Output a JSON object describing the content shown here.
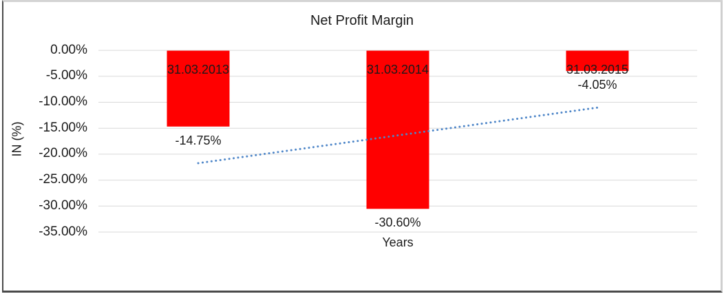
{
  "chart_data": {
    "type": "bar",
    "title": "Net Profit Margin",
    "xlabel": "Years",
    "ylabel": "IN (%)",
    "categories": [
      "31.03.2013",
      "31.03.2014",
      "31.03.2015"
    ],
    "series": [
      {
        "name": "Net Profit Margin",
        "values": [
          -14.75,
          -30.6,
          -4.05
        ]
      }
    ],
    "value_labels": [
      "-14.75%",
      "-30.60%",
      "-4.05%"
    ],
    "yticks": [
      0,
      -5,
      -10,
      -15,
      -20,
      -25,
      -30,
      -35
    ],
    "ytick_labels": [
      "0.00%",
      "-5.00%",
      "-10.00%",
      "-15.00%",
      "-20.00%",
      "-25.00%",
      "-30.00%",
      "-35.00%"
    ],
    "ylim": [
      -35,
      0
    ],
    "grid": true,
    "legend": "none",
    "bar_color": "#FF0000",
    "gridline_color": "#D9D9D9",
    "trendline": {
      "type": "linear",
      "style": "dotted",
      "color": "#4E86C8",
      "start_value": -21.8,
      "end_value": -11.1
    }
  }
}
